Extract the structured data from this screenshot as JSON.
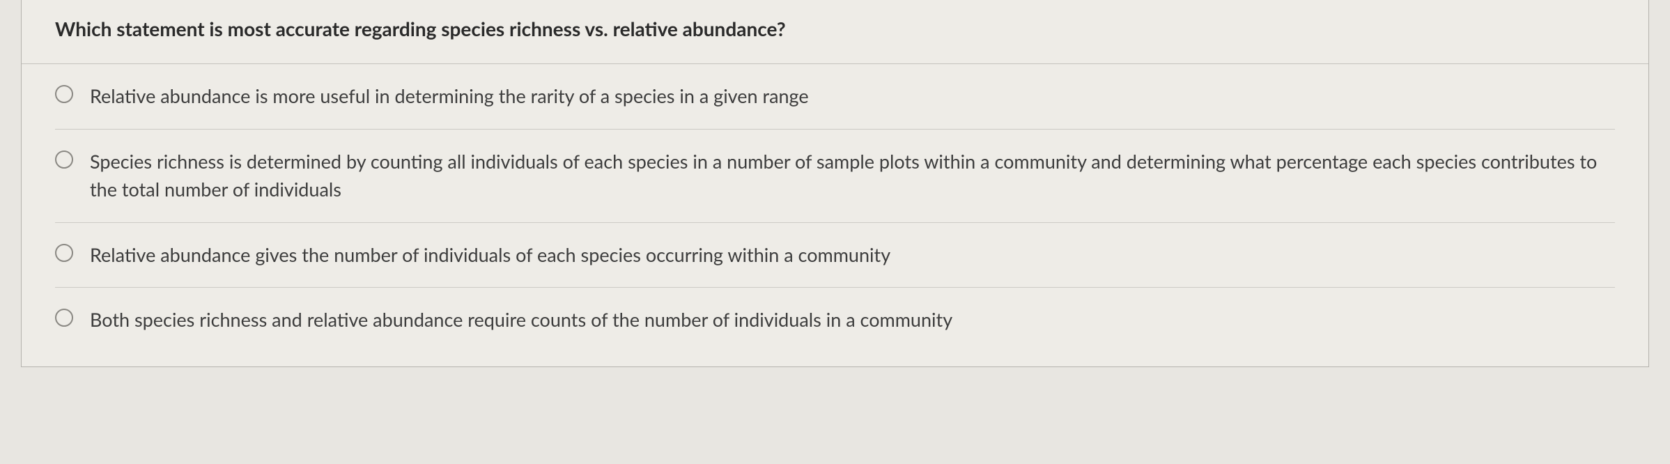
{
  "question": {
    "prompt": "Which statement is most accurate regarding species richness vs. relative abundance?",
    "options": [
      {
        "text": "Relative abundance is more useful in determining the rarity of a species in a given range"
      },
      {
        "text": "Species richness is determined by counting all individuals of each species in a number of sample plots within a community and determining what percentage each species contributes to the total number of individuals"
      },
      {
        "text": "Relative abundance gives the number of individuals of each species occurring within a community"
      },
      {
        "text": "Both species richness and relative abundance require counts of the number of individuals in a community"
      }
    ]
  },
  "styling": {
    "background_color": "#e8e6e1",
    "container_bg": "#eeece7",
    "border_color": "#b5b3ae",
    "divider_color": "#cccac5",
    "question_fontsize": 28,
    "question_weight": 700,
    "question_color": "#2a2a2a",
    "option_fontsize": 27,
    "option_weight": 400,
    "option_color": "#3d3d3d",
    "radio_size": 26,
    "radio_border_color": "#8a8883"
  }
}
